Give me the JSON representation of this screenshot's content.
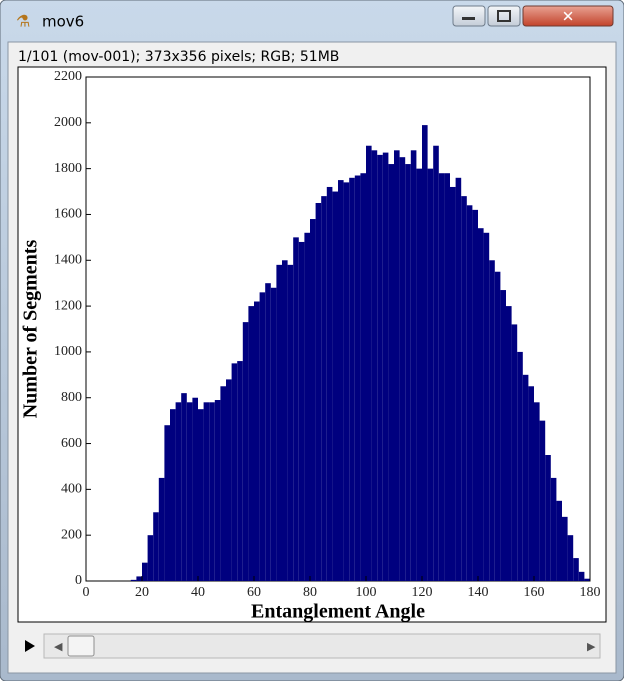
{
  "window": {
    "title": "mov6",
    "status": "1/101 (mov-001); 373x356 pixels; RGB; 51MB"
  },
  "chart_data": {
    "type": "histogram",
    "x_label": "Entanglement Angle",
    "y_label": "Number of Segments",
    "color": "#00007f",
    "bins": [
      0,
      2,
      4,
      6,
      8,
      10,
      12,
      14,
      16,
      18,
      20,
      22,
      24,
      26,
      28,
      30,
      32,
      34,
      36,
      38,
      40,
      42,
      44,
      46,
      48,
      50,
      52,
      54,
      56,
      58,
      60,
      62,
      64,
      66,
      68,
      70,
      72,
      74,
      76,
      78,
      80,
      82,
      84,
      86,
      88,
      90,
      92,
      94,
      96,
      98,
      100,
      102,
      104,
      106,
      108,
      110,
      112,
      114,
      116,
      118,
      120,
      122,
      124,
      126,
      128,
      130,
      132,
      134,
      136,
      138,
      140,
      142,
      144,
      146,
      148,
      150,
      152,
      154,
      156,
      158,
      160,
      162,
      164,
      166,
      168,
      170,
      172,
      174,
      176,
      178,
      180
    ],
    "values": [
      0,
      0,
      0,
      0,
      0,
      0,
      0,
      0,
      5,
      20,
      80,
      200,
      300,
      450,
      680,
      750,
      780,
      820,
      780,
      800,
      750,
      780,
      780,
      790,
      850,
      880,
      950,
      960,
      1130,
      1200,
      1220,
      1260,
      1300,
      1280,
      1380,
      1400,
      1380,
      1500,
      1480,
      1520,
      1580,
      1650,
      1680,
      1720,
      1700,
      1750,
      1740,
      1760,
      1770,
      1780,
      1900,
      1880,
      1860,
      1870,
      1820,
      1880,
      1850,
      1820,
      1880,
      1800,
      1990,
      1800,
      1900,
      1780,
      1780,
      1720,
      1760,
      1680,
      1640,
      1620,
      1540,
      1520,
      1400,
      1350,
      1270,
      1200,
      1120,
      1000,
      900,
      850,
      780,
      700,
      550,
      450,
      350,
      280,
      200,
      100,
      40,
      10
    ],
    "xlim": [
      0,
      180
    ],
    "xticks": [
      0,
      20,
      40,
      60,
      80,
      100,
      120,
      140,
      160,
      180
    ],
    "ylim": [
      0,
      2200
    ],
    "yticks": [
      0,
      200,
      400,
      600,
      800,
      1000,
      1200,
      1400,
      1600,
      1800,
      2000,
      2200
    ]
  }
}
